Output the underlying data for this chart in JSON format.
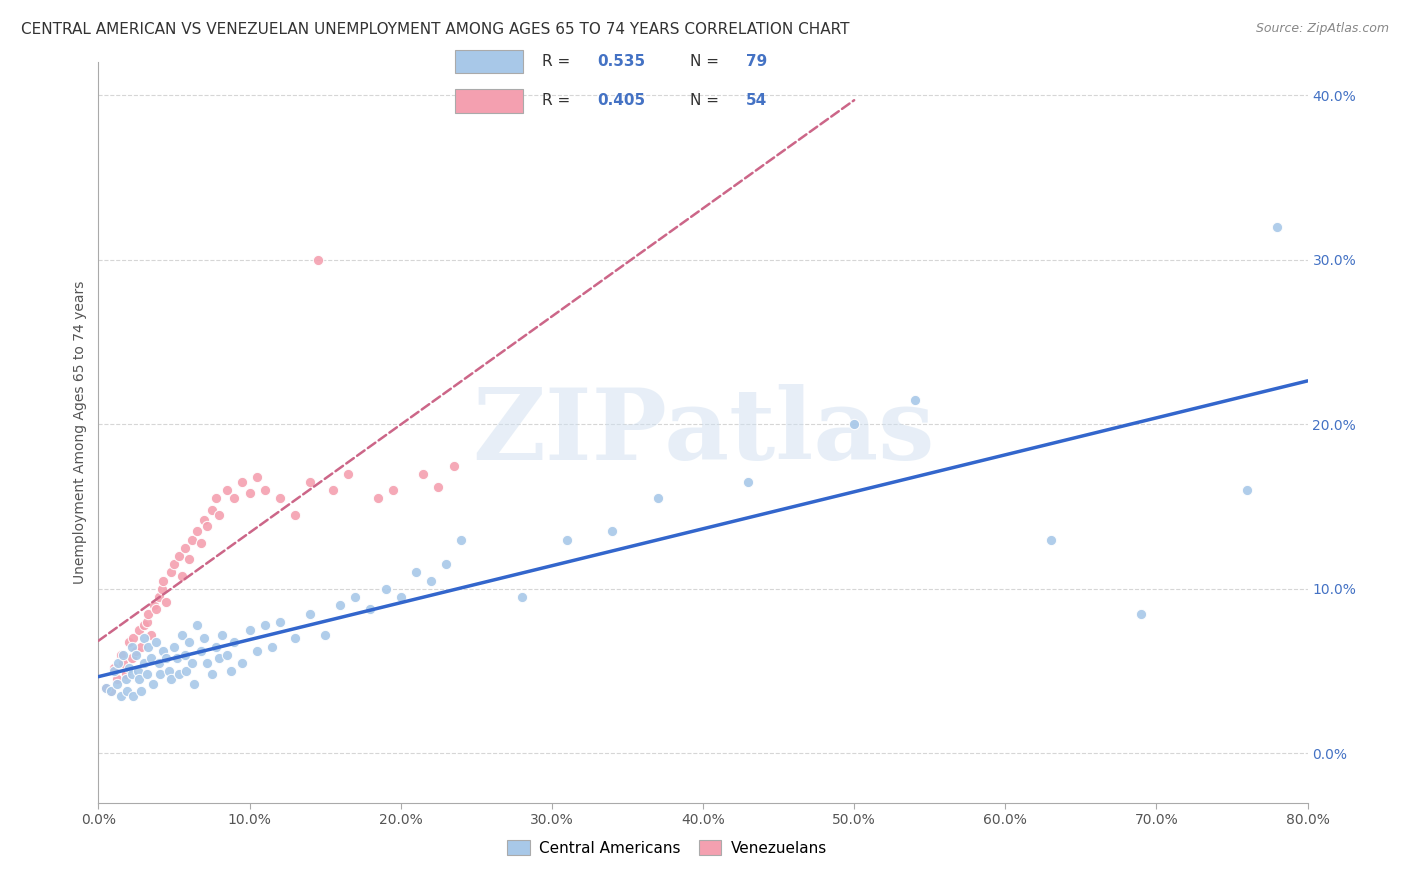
{
  "title": "CENTRAL AMERICAN VS VENEZUELAN UNEMPLOYMENT AMONG AGES 65 TO 74 YEARS CORRELATION CHART",
  "source": "Source: ZipAtlas.com",
  "ylabel": "Unemployment Among Ages 65 to 74 years",
  "xlim": [
    0.0,
    0.8
  ],
  "ylim": [
    -0.03,
    0.42
  ],
  "R_central": 0.535,
  "N_central": 79,
  "R_venezuelan": 0.405,
  "N_venezuelan": 54,
  "central_color": "#a8c8e8",
  "venezuelan_color": "#f4a0b0",
  "central_line_color": "#3366cc",
  "venezuelan_line_color": "#cc6688",
  "background_color": "#ffffff",
  "grid_color": "#cccccc",
  "watermark": "ZIPatlas",
  "central_scatter_x": [
    0.005,
    0.008,
    0.01,
    0.012,
    0.013,
    0.015,
    0.016,
    0.018,
    0.019,
    0.02,
    0.022,
    0.022,
    0.023,
    0.025,
    0.026,
    0.027,
    0.028,
    0.03,
    0.03,
    0.032,
    0.033,
    0.035,
    0.036,
    0.038,
    0.04,
    0.041,
    0.043,
    0.045,
    0.047,
    0.048,
    0.05,
    0.052,
    0.053,
    0.055,
    0.057,
    0.058,
    0.06,
    0.062,
    0.063,
    0.065,
    0.068,
    0.07,
    0.072,
    0.075,
    0.078,
    0.08,
    0.082,
    0.085,
    0.088,
    0.09,
    0.095,
    0.1,
    0.105,
    0.11,
    0.115,
    0.12,
    0.13,
    0.14,
    0.15,
    0.16,
    0.17,
    0.18,
    0.19,
    0.2,
    0.21,
    0.22,
    0.23,
    0.24,
    0.28,
    0.31,
    0.34,
    0.37,
    0.43,
    0.5,
    0.54,
    0.63,
    0.69,
    0.76,
    0.78
  ],
  "central_scatter_y": [
    0.04,
    0.038,
    0.05,
    0.042,
    0.055,
    0.035,
    0.06,
    0.045,
    0.038,
    0.052,
    0.048,
    0.065,
    0.035,
    0.06,
    0.05,
    0.045,
    0.038,
    0.055,
    0.07,
    0.048,
    0.065,
    0.058,
    0.042,
    0.068,
    0.055,
    0.048,
    0.062,
    0.058,
    0.05,
    0.045,
    0.065,
    0.058,
    0.048,
    0.072,
    0.06,
    0.05,
    0.068,
    0.055,
    0.042,
    0.078,
    0.062,
    0.07,
    0.055,
    0.048,
    0.065,
    0.058,
    0.072,
    0.06,
    0.05,
    0.068,
    0.055,
    0.075,
    0.062,
    0.078,
    0.065,
    0.08,
    0.07,
    0.085,
    0.072,
    0.09,
    0.095,
    0.088,
    0.1,
    0.095,
    0.11,
    0.105,
    0.115,
    0.13,
    0.095,
    0.13,
    0.135,
    0.155,
    0.165,
    0.2,
    0.215,
    0.13,
    0.085,
    0.16,
    0.32
  ],
  "venezuelan_scatter_x": [
    0.005,
    0.008,
    0.01,
    0.012,
    0.015,
    0.016,
    0.018,
    0.02,
    0.022,
    0.023,
    0.025,
    0.027,
    0.028,
    0.03,
    0.032,
    0.033,
    0.035,
    0.037,
    0.038,
    0.04,
    0.042,
    0.043,
    0.045,
    0.048,
    0.05,
    0.053,
    0.055,
    0.057,
    0.06,
    0.062,
    0.065,
    0.068,
    0.07,
    0.072,
    0.075,
    0.078,
    0.08,
    0.085,
    0.09,
    0.095,
    0.1,
    0.105,
    0.11,
    0.12,
    0.13,
    0.14,
    0.145,
    0.155,
    0.165,
    0.185,
    0.195,
    0.215,
    0.225,
    0.235
  ],
  "venezuelan_scatter_y": [
    0.04,
    0.038,
    0.052,
    0.045,
    0.06,
    0.055,
    0.048,
    0.068,
    0.058,
    0.07,
    0.062,
    0.075,
    0.065,
    0.078,
    0.08,
    0.085,
    0.072,
    0.09,
    0.088,
    0.095,
    0.1,
    0.105,
    0.092,
    0.11,
    0.115,
    0.12,
    0.108,
    0.125,
    0.118,
    0.13,
    0.135,
    0.128,
    0.142,
    0.138,
    0.148,
    0.155,
    0.145,
    0.16,
    0.155,
    0.165,
    0.158,
    0.168,
    0.16,
    0.155,
    0.145,
    0.165,
    0.3,
    0.16,
    0.17,
    0.155,
    0.16,
    0.17,
    0.162,
    0.175
  ]
}
